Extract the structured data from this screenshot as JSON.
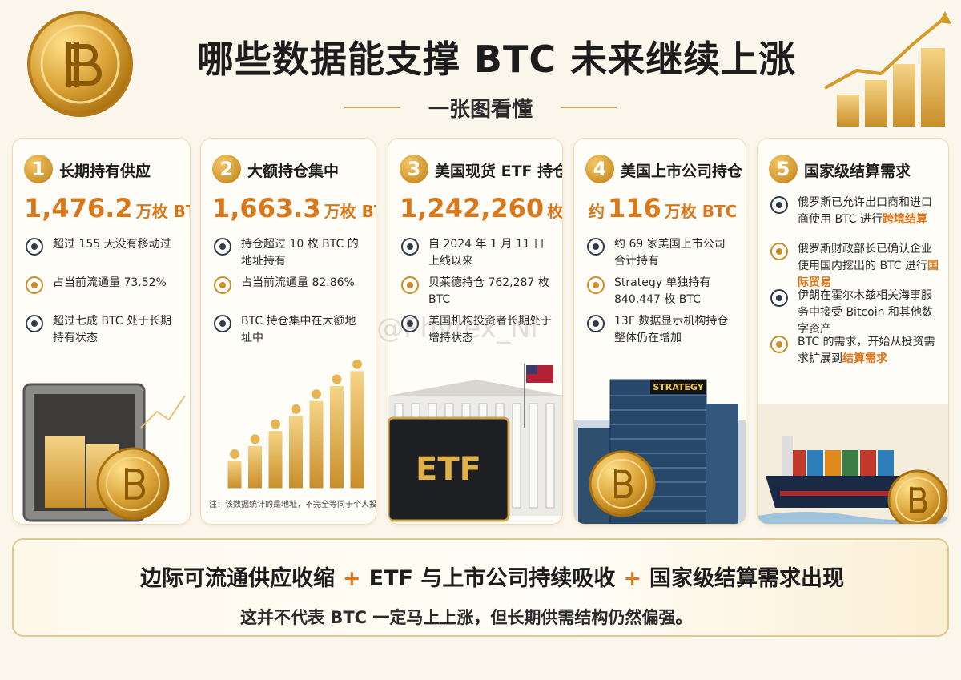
{
  "header": {
    "title": "哪些数据能支撑 BTC 未来继续上涨",
    "subtitle": "一张图看懂",
    "watermark": "@Phyrex_Ni"
  },
  "cards": [
    {
      "number": "1",
      "title": "长期持有供应",
      "stat": {
        "value": "1,476.2",
        "unit": "万枚 BTC"
      },
      "items": [
        {
          "text": "超过 155 天没有移动过"
        },
        {
          "text": "占当前流通量 73.52%"
        },
        {
          "text": "超过七成 BTC 处于长期持有状态"
        }
      ]
    },
    {
      "number": "2",
      "title": "大额持仓集中",
      "stat": {
        "value": "1,663.3",
        "unit": "万枚 BTC"
      },
      "items": [
        {
          "text": "持仓超过 10 枚 BTC 的地址持有"
        },
        {
          "text": "占当前流通量 82.86%"
        },
        {
          "text": "BTC 持仓集中在大额地址中"
        }
      ],
      "note": "注：该数据统计的是地址，不完全等同于个人投资者"
    },
    {
      "number": "3",
      "title": "美国现货 ETF 持仓",
      "stat": {
        "value": "1,242,260",
        "unit": "枚 BTC"
      },
      "items": [
        {
          "text": "自 2024 年 1 月 11 日上线以来"
        },
        {
          "text": "贝莱德持仓 762,287 枚 BTC"
        },
        {
          "text": "美国机构投资者长期处于增持状态"
        }
      ],
      "image_label": "ETF"
    },
    {
      "number": "4",
      "title": "美国上市公司持仓",
      "stat": {
        "prefix": "约",
        "value": "116",
        "unit": "万枚 BTC"
      },
      "items": [
        {
          "text": "约 69 家美国上市公司合计持有"
        },
        {
          "text": "Strategy 单独持有 840,447 枚 BTC"
        },
        {
          "text": "13F 数据显示机构持仓整体仍在增加"
        }
      ],
      "image_label": "STRATEGY"
    },
    {
      "number": "5",
      "title": "国家级结算需求",
      "items": [
        {
          "text": "俄罗斯已允许出口商和进口商使用 BTC 进行",
          "highlight": "跨境结算"
        },
        {
          "text": "俄罗斯财政部长已确认企业使用国内挖出的 BTC 进行",
          "highlight": "国际贸易"
        },
        {
          "text": "伊朗在霍尔木兹相关海事服务中接受 Bitcoin 和其他数字资产"
        },
        {
          "text": "BTC 的需求，开始从投资需求扩展到",
          "highlight": "结算需求"
        }
      ]
    }
  ],
  "footer": {
    "parts": [
      "边际可流通供应收缩",
      "+",
      "ETF 与上市公司持续吸收",
      "+",
      "国家级结算需求出现"
    ],
    "note": "这并不代表 BTC 一定马上上涨，但长期供需结构仍然偏强。"
  }
}
